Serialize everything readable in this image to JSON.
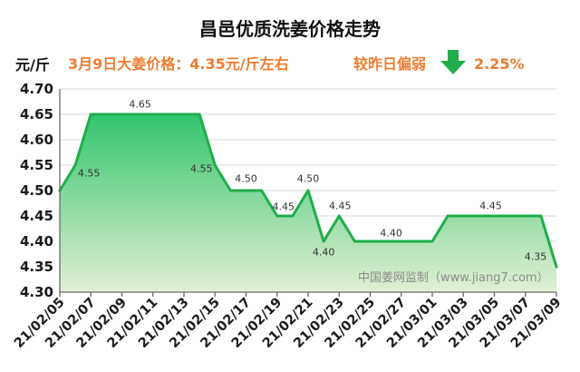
{
  "chart_data": {
    "type": "area",
    "title": "昌邑优质洗姜价格走势",
    "ylabel": "元/斤",
    "ylim": [
      4.3,
      4.7
    ],
    "yticks": [
      "4.70",
      "4.65",
      "4.60",
      "4.55",
      "4.50",
      "4.45",
      "4.40",
      "4.35",
      "4.30"
    ],
    "x": [
      "21/02/05",
      "21/02/06",
      "21/02/07",
      "21/02/08",
      "21/02/09",
      "21/02/10",
      "21/02/11",
      "21/02/12",
      "21/02/13",
      "21/02/14",
      "21/02/15",
      "21/02/16",
      "21/02/17",
      "21/02/18",
      "21/02/19",
      "21/02/20",
      "21/02/21",
      "21/02/22",
      "21/02/23",
      "21/02/24",
      "21/02/25",
      "21/02/26",
      "21/02/27",
      "21/02/28",
      "21/03/01",
      "21/03/02",
      "21/03/03",
      "21/03/04",
      "21/03/05",
      "21/03/06",
      "21/03/07",
      "21/03/08",
      "21/03/09"
    ],
    "xticks": [
      "21/02/05",
      "21/02/07",
      "21/02/09",
      "21/02/11",
      "21/02/13",
      "21/02/15",
      "21/02/17",
      "21/02/19",
      "21/02/21",
      "21/02/23",
      "21/02/25",
      "21/02/27",
      "21/03/01",
      "21/03/03",
      "21/03/05",
      "21/03/07",
      "21/03/09"
    ],
    "series": [
      {
        "values": [
          4.5,
          4.55,
          4.65,
          4.65,
          4.65,
          4.65,
          4.65,
          4.65,
          4.65,
          4.65,
          4.55,
          4.5,
          4.5,
          4.5,
          4.45,
          4.45,
          4.5,
          4.4,
          4.45,
          4.4,
          4.4,
          4.4,
          4.4,
          4.4,
          4.4,
          4.45,
          4.45,
          4.45,
          4.45,
          4.45,
          4.45,
          4.45,
          4.35
        ]
      }
    ],
    "data_labels": [
      {
        "x": "21/02/06",
        "text": "4.55"
      },
      {
        "x": "21/02/10",
        "text": "4.65"
      },
      {
        "x": "21/02/15",
        "text": "4.55"
      },
      {
        "x": "21/02/17",
        "text": "4.50"
      },
      {
        "x": "21/02/19",
        "text": "4.45"
      },
      {
        "x": "21/02/21",
        "text": "4.50"
      },
      {
        "x": "21/02/22",
        "text": "4.40"
      },
      {
        "x": "21/02/23",
        "text": "4.45"
      },
      {
        "x": "21/02/26",
        "text": "4.40"
      },
      {
        "x": "21/03/05",
        "text": "4.45"
      },
      {
        "x": "21/03/09",
        "text": "4.35"
      }
    ],
    "grid": "horizontal",
    "legend": "none",
    "colors": {
      "line": "#1fae4b",
      "fill_top": "#2ec46b",
      "fill_bottom": "#e3efd5",
      "axis": "#6b6b6b"
    }
  },
  "summary": {
    "price_note": "3月9日大姜价格：4.35元/斤左右",
    "trend_text": "较昨日偏弱",
    "trend_icon": "down-arrow-icon",
    "change": "2.25%",
    "accent_color": "#ED7D31",
    "arrow_color": "#1fae4b"
  },
  "watermark": "中国姜网监制（www.jiang7.com）"
}
